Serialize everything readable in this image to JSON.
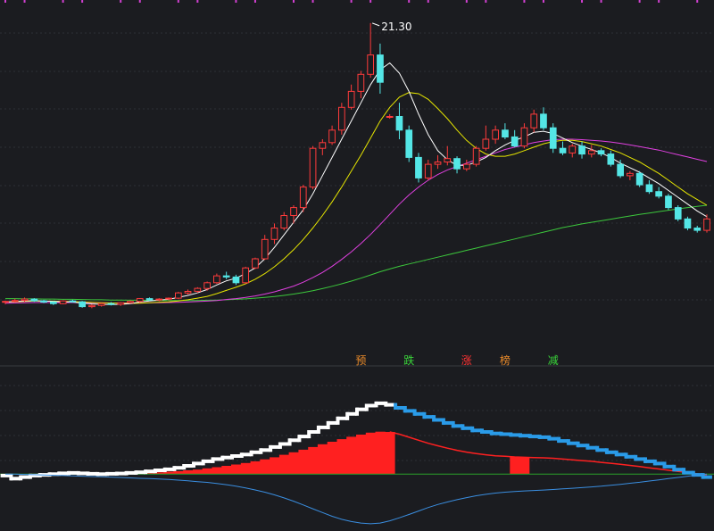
{
  "chart_data": {
    "type": "candlestick",
    "max_label": "21.30",
    "event_tags": [
      {
        "text": "预",
        "color": "#e88a2a",
        "x": 37
      },
      {
        "text": "跌",
        "color": "#3ad53a",
        "x": 42
      },
      {
        "text": "涨",
        "color": "#ff3333",
        "x": 48
      },
      {
        "text": "榜",
        "color": "#e88a2a",
        "x": 52
      },
      {
        "text": "减",
        "color": "#3ad53a",
        "x": 57
      }
    ],
    "price_ylim": [
      7.5,
      22.0
    ],
    "indicator_ylim": [
      -3.6,
      6.0
    ],
    "colors": {
      "up": "#ff3b3b",
      "down": "#54e6e6",
      "ma5": "#ffffff",
      "ma10": "#e6e600",
      "ma20": "#e040e0",
      "ma60": "#3cc83c",
      "white_step": "#ffffff",
      "blue_step": "#2a9be8",
      "red_line": "#ff2020",
      "dif_line": "#3a8ee0",
      "zero_line": "#2aa02a"
    },
    "top_ticks_color": "#d040d0",
    "candles": [
      [
        9.05,
        9.1,
        8.95,
        9.08
      ],
      [
        9.08,
        9.2,
        9.02,
        9.12
      ],
      [
        9.12,
        9.25,
        9.05,
        9.18
      ],
      [
        9.18,
        9.22,
        9.06,
        9.1
      ],
      [
        9.1,
        9.15,
        9.0,
        9.05
      ],
      [
        9.05,
        9.08,
        8.92,
        8.98
      ],
      [
        8.98,
        9.12,
        8.95,
        9.1
      ],
      [
        9.1,
        9.15,
        9.02,
        9.06
      ],
      [
        9.06,
        9.1,
        8.8,
        8.85
      ],
      [
        8.85,
        8.95,
        8.78,
        8.9
      ],
      [
        8.9,
        9.02,
        8.85,
        8.98
      ],
      [
        8.98,
        9.05,
        8.9,
        8.95
      ],
      [
        8.95,
        9.05,
        8.88,
        9.02
      ],
      [
        9.02,
        9.12,
        8.98,
        9.08
      ],
      [
        9.08,
        9.22,
        9.02,
        9.2
      ],
      [
        9.2,
        9.25,
        9.1,
        9.14
      ],
      [
        9.14,
        9.22,
        9.08,
        9.18
      ],
      [
        9.18,
        9.25,
        9.12,
        9.22
      ],
      [
        9.22,
        9.5,
        9.18,
        9.45
      ],
      [
        9.45,
        9.6,
        9.38,
        9.52
      ],
      [
        9.52,
        9.7,
        9.45,
        9.65
      ],
      [
        9.65,
        9.95,
        9.55,
        9.9
      ],
      [
        9.9,
        10.3,
        9.85,
        10.2
      ],
      [
        10.2,
        10.38,
        10.05,
        10.15
      ],
      [
        10.15,
        10.25,
        9.8,
        9.9
      ],
      [
        9.9,
        10.6,
        9.85,
        10.55
      ],
      [
        10.55,
        11.0,
        10.5,
        10.95
      ],
      [
        10.95,
        12.0,
        10.9,
        11.8
      ],
      [
        11.8,
        12.5,
        11.6,
        12.3
      ],
      [
        12.3,
        13.0,
        12.2,
        12.85
      ],
      [
        12.85,
        13.3,
        12.5,
        13.2
      ],
      [
        13.2,
        14.2,
        13.0,
        14.1
      ],
      [
        14.1,
        15.9,
        14.0,
        15.8
      ],
      [
        15.8,
        16.2,
        15.5,
        16.05
      ],
      [
        16.05,
        16.8,
        15.95,
        16.6
      ],
      [
        16.6,
        17.8,
        16.4,
        17.6
      ],
      [
        17.6,
        18.6,
        17.5,
        18.3
      ],
      [
        18.3,
        19.2,
        18.0,
        19.05
      ],
      [
        19.05,
        21.3,
        18.9,
        19.9
      ],
      [
        19.9,
        20.4,
        18.2,
        18.7
      ],
      [
        17.2,
        17.3,
        17.1,
        17.2
      ],
      [
        17.2,
        17.8,
        16.2,
        16.6
      ],
      [
        16.6,
        16.8,
        15.2,
        15.4
      ],
      [
        15.4,
        15.6,
        14.3,
        14.5
      ],
      [
        14.5,
        15.3,
        14.4,
        15.1
      ],
      [
        15.1,
        15.5,
        14.9,
        15.2
      ],
      [
        15.2,
        15.9,
        15.05,
        15.35
      ],
      [
        15.35,
        15.45,
        14.7,
        14.9
      ],
      [
        14.9,
        15.3,
        14.8,
        15.1
      ],
      [
        15.1,
        15.9,
        15.0,
        15.8
      ],
      [
        15.8,
        16.8,
        15.7,
        16.2
      ],
      [
        16.2,
        16.8,
        16.0,
        16.6
      ],
      [
        16.6,
        16.9,
        16.2,
        16.3
      ],
      [
        16.3,
        16.6,
        15.85,
        15.9
      ],
      [
        15.9,
        16.9,
        15.8,
        16.7
      ],
      [
        16.7,
        17.5,
        16.5,
        17.3
      ],
      [
        17.3,
        17.6,
        16.6,
        16.7
      ],
      [
        16.7,
        16.9,
        15.6,
        15.8
      ],
      [
        15.8,
        16.1,
        15.5,
        15.6
      ],
      [
        15.6,
        16.0,
        15.4,
        15.9
      ],
      [
        15.9,
        16.1,
        15.35,
        15.55
      ],
      [
        15.55,
        15.95,
        15.4,
        15.7
      ],
      [
        15.7,
        15.8,
        15.45,
        15.55
      ],
      [
        15.55,
        15.7,
        15.0,
        15.1
      ],
      [
        15.1,
        15.3,
        14.5,
        14.6
      ],
      [
        14.6,
        14.8,
        14.4,
        14.7
      ],
      [
        14.7,
        14.8,
        14.1,
        14.2
      ],
      [
        14.2,
        14.4,
        13.8,
        13.9
      ],
      [
        13.9,
        14.1,
        13.6,
        13.7
      ],
      [
        13.7,
        13.8,
        13.1,
        13.2
      ],
      [
        13.2,
        13.3,
        12.6,
        12.7
      ],
      [
        12.7,
        12.8,
        12.2,
        12.3
      ],
      [
        12.3,
        12.4,
        12.1,
        12.2
      ],
      [
        12.2,
        12.9,
        12.1,
        12.7
      ]
    ],
    "ma5": [
      9.05,
      9.08,
      9.1,
      9.11,
      9.1,
      9.08,
      9.06,
      9.05,
      9.0,
      8.97,
      8.95,
      8.94,
      8.95,
      8.98,
      9.05,
      9.1,
      9.14,
      9.17,
      9.25,
      9.34,
      9.45,
      9.6,
      9.8,
      9.98,
      10.1,
      10.3,
      10.55,
      10.95,
      11.45,
      12.0,
      12.55,
      13.1,
      13.8,
      14.6,
      15.4,
      16.2,
      17.0,
      17.8,
      18.6,
      19.25,
      19.55,
      19.1,
      18.3,
      17.3,
      16.4,
      15.7,
      15.3,
      15.05,
      15.05,
      15.2,
      15.4,
      15.7,
      15.95,
      16.15,
      16.3,
      16.5,
      16.55,
      16.45,
      16.25,
      16.05,
      15.9,
      15.75,
      15.6,
      15.4,
      15.15,
      14.95,
      14.75,
      14.5,
      14.25,
      13.95,
      13.65,
      13.35,
      13.05,
      12.8
    ],
    "ma10": [
      9.05,
      9.06,
      9.08,
      9.09,
      9.09,
      9.09,
      9.08,
      9.07,
      9.06,
      9.04,
      9.02,
      9.01,
      9.0,
      8.99,
      9.0,
      9.02,
      9.04,
      9.06,
      9.1,
      9.15,
      9.22,
      9.3,
      9.42,
      9.56,
      9.7,
      9.85,
      10.05,
      10.3,
      10.6,
      10.95,
      11.35,
      11.8,
      12.3,
      12.85,
      13.45,
      14.1,
      14.8,
      15.5,
      16.25,
      17.0,
      17.6,
      18.05,
      18.25,
      18.2,
      17.95,
      17.55,
      17.1,
      16.6,
      16.15,
      15.8,
      15.55,
      15.45,
      15.45,
      15.55,
      15.7,
      15.85,
      16.0,
      16.1,
      16.15,
      16.15,
      16.1,
      16.0,
      15.9,
      15.75,
      15.6,
      15.4,
      15.2,
      14.95,
      14.7,
      14.4,
      14.1,
      13.8,
      13.55,
      13.3
    ],
    "ma20": [
      9.0,
      9.01,
      9.02,
      9.03,
      9.03,
      9.03,
      9.03,
      9.03,
      9.02,
      9.02,
      9.02,
      9.01,
      9.01,
      9.01,
      9.01,
      9.02,
      9.02,
      9.03,
      9.04,
      9.05,
      9.07,
      9.09,
      9.12,
      9.16,
      9.2,
      9.25,
      9.32,
      9.4,
      9.5,
      9.62,
      9.75,
      9.92,
      10.12,
      10.35,
      10.62,
      10.92,
      11.25,
      11.62,
      12.02,
      12.45,
      12.9,
      13.35,
      13.75,
      14.1,
      14.4,
      14.65,
      14.85,
      15.0,
      15.15,
      15.3,
      15.45,
      15.6,
      15.75,
      15.85,
      15.95,
      16.05,
      16.12,
      16.18,
      16.2,
      16.2,
      16.18,
      16.15,
      16.12,
      16.08,
      16.02,
      15.95,
      15.88,
      15.8,
      15.72,
      15.62,
      15.52,
      15.42,
      15.32,
      15.22
    ],
    "ma60": [
      9.2,
      9.2,
      9.19,
      9.19,
      9.18,
      9.18,
      9.17,
      9.17,
      9.16,
      9.15,
      9.15,
      9.14,
      9.14,
      9.13,
      9.13,
      9.12,
      9.12,
      9.12,
      9.12,
      9.12,
      9.12,
      9.13,
      9.14,
      9.15,
      9.17,
      9.19,
      9.22,
      9.25,
      9.29,
      9.34,
      9.4,
      9.47,
      9.55,
      9.64,
      9.74,
      9.85,
      9.97,
      10.1,
      10.24,
      10.38,
      10.5,
      10.62,
      10.72,
      10.82,
      10.92,
      11.02,
      11.12,
      11.22,
      11.32,
      11.42,
      11.52,
      11.62,
      11.72,
      11.82,
      11.92,
      12.02,
      12.12,
      12.22,
      12.32,
      12.4,
      12.48,
      12.55,
      12.62,
      12.69,
      12.76,
      12.83,
      12.9,
      12.96,
      13.02,
      13.08,
      13.14,
      13.2,
      13.25,
      13.3
    ],
    "ind_white": [
      -0.1,
      -0.3,
      -0.2,
      -0.1,
      -0.05,
      0.0,
      0.05,
      0.08,
      0.05,
      0.02,
      0.0,
      0.02,
      0.04,
      0.08,
      0.12,
      0.18,
      0.25,
      0.32,
      0.42,
      0.55,
      0.7,
      0.85,
      1.0,
      1.1,
      1.2,
      1.3,
      1.45,
      1.6,
      1.8,
      2.0,
      2.25,
      2.5,
      2.8,
      3.1,
      3.4,
      3.7,
      4.0,
      4.3,
      4.55,
      4.7,
      4.6,
      4.4,
      4.2,
      4.0,
      3.8,
      3.6,
      3.4,
      3.2,
      3.05,
      2.9,
      2.8,
      2.7,
      2.65,
      2.6,
      2.55,
      2.5,
      2.45,
      2.35,
      2.2,
      2.05,
      1.9,
      1.75,
      1.6,
      1.45,
      1.3,
      1.15,
      1.0,
      0.85,
      0.7,
      0.5,
      0.3,
      0.1,
      -0.05,
      -0.2
    ],
    "ind_red": [
      0.0,
      0.0,
      0.0,
      0.0,
      0.0,
      0.0,
      0.0,
      0.0,
      0.0,
      0.0,
      0.0,
      0.0,
      0.0,
      0.02,
      0.05,
      0.08,
      0.12,
      0.16,
      0.2,
      0.25,
      0.3,
      0.38,
      0.46,
      0.55,
      0.64,
      0.74,
      0.85,
      0.98,
      1.12,
      1.28,
      1.45,
      1.62,
      1.8,
      1.98,
      2.15,
      2.32,
      2.48,
      2.62,
      2.75,
      2.82,
      2.8,
      2.65,
      2.45,
      2.25,
      2.05,
      1.88,
      1.72,
      1.58,
      1.46,
      1.36,
      1.28,
      1.22,
      1.18,
      1.14,
      1.12,
      1.1,
      1.08,
      1.05,
      1.0,
      0.95,
      0.9,
      0.85,
      0.78,
      0.72,
      0.65,
      0.58,
      0.5,
      0.42,
      0.34,
      0.26,
      0.18,
      0.1,
      0.02,
      -0.05
    ],
    "ind_blue": [
      0.0,
      0.0,
      -0.02,
      -0.04,
      -0.06,
      -0.08,
      -0.1,
      -0.12,
      -0.14,
      -0.16,
      -0.18,
      -0.2,
      -0.22,
      -0.25,
      -0.28,
      -0.3,
      -0.33,
      -0.36,
      -0.4,
      -0.45,
      -0.5,
      -0.55,
      -0.62,
      -0.7,
      -0.8,
      -0.92,
      -1.05,
      -1.2,
      -1.38,
      -1.58,
      -1.8,
      -2.05,
      -2.3,
      -2.55,
      -2.8,
      -3.0,
      -3.15,
      -3.25,
      -3.3,
      -3.25,
      -3.1,
      -2.9,
      -2.68,
      -2.45,
      -2.22,
      -2.02,
      -1.85,
      -1.7,
      -1.56,
      -1.44,
      -1.34,
      -1.26,
      -1.2,
      -1.16,
      -1.12,
      -1.09,
      -1.06,
      -1.02,
      -0.98,
      -0.94,
      -0.9,
      -0.85,
      -0.8,
      -0.74,
      -0.68,
      -0.61,
      -0.54,
      -0.46,
      -0.38,
      -0.3,
      -0.22,
      -0.14,
      -0.06,
      0.0
    ]
  }
}
